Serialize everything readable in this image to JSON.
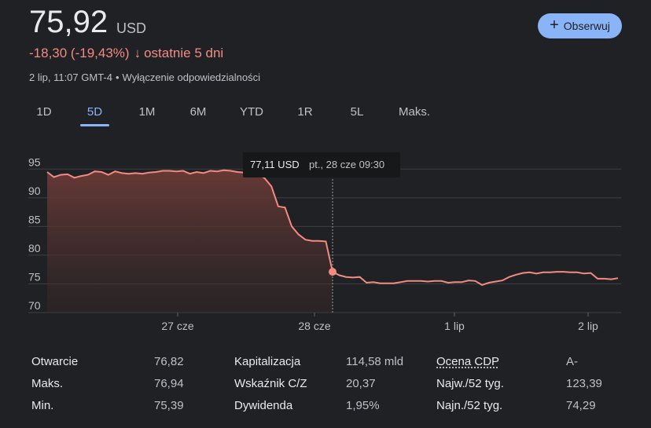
{
  "quote": {
    "price": "75,92",
    "currency": "USD",
    "change": "-18,30 (-19,43%)",
    "change_arrow": "↓",
    "change_period": "ostatnie 5 dni",
    "timestamp": "2 lip, 11:07 GMT-4",
    "separator": "•",
    "disclaimer": "Wyłączenie odpowiedzialności",
    "follow_label": "Obserwuj",
    "follow_icon": "plus-icon",
    "negative_color": "#f28b82",
    "accent_color": "#8ab4f8"
  },
  "tabs": [
    {
      "label": "1D",
      "active": false
    },
    {
      "label": "5D",
      "active": true
    },
    {
      "label": "1M",
      "active": false
    },
    {
      "label": "6M",
      "active": false
    },
    {
      "label": "YTD",
      "active": false
    },
    {
      "label": "1R",
      "active": false
    },
    {
      "label": "5L",
      "active": false
    },
    {
      "label": "Maks.",
      "active": false
    }
  ],
  "chart_data": {
    "type": "area",
    "y_ticks": [
      "95",
      "90",
      "85",
      "80",
      "75",
      "70"
    ],
    "ylim": [
      70,
      96
    ],
    "x_ticks": [
      "27 cze",
      "28 cze",
      "1 lip",
      "2 lip"
    ],
    "grid": true,
    "tooltip": {
      "value": "77,11 USD",
      "time": "pt., 28 cze 09:30"
    },
    "series": [
      {
        "values": [
          94.5,
          93.6,
          94.0,
          94.1,
          93.5,
          93.8,
          94.0,
          94.6,
          94.5,
          94.0,
          94.6,
          94.3,
          94.2,
          94.3,
          94.2,
          94.4,
          94.5,
          94.7,
          94.7,
          94.6,
          94.7,
          94.2,
          94.5,
          94.3,
          94.7,
          94.6,
          94.8,
          94.7,
          94.5,
          94.4,
          94.1,
          94.2,
          93.4,
          92.0,
          88.5,
          88.3,
          85.0,
          83.6,
          82.7,
          82.5,
          82.5,
          82.4,
          77.1,
          76.5,
          76.2,
          76.1,
          76.2,
          75.2,
          75.3,
          75.1,
          75.1,
          75.1,
          75.3,
          75.5,
          75.5,
          75.5,
          75.4,
          75.5,
          75.5,
          75.2,
          75.3,
          75.3,
          75.6,
          75.5,
          74.8,
          75.2,
          75.4,
          75.6,
          76.2,
          76.6,
          76.9,
          77.0,
          76.8,
          77.0,
          77.0,
          77.1,
          77.1,
          77.0,
          77.0,
          76.8,
          76.9,
          75.9,
          75.9,
          75.8,
          76.0
        ]
      }
    ],
    "line_color": "#f28b82"
  },
  "stats": [
    {
      "label": "Otwarcie",
      "value": "76,82"
    },
    {
      "label": "Maks.",
      "value": "76,94"
    },
    {
      "label": "Min.",
      "value": "75,39"
    },
    {
      "label": "Kapitalizacja",
      "value": "114,58 mld"
    },
    {
      "label": "Wskaźnik C/Z",
      "value": "20,37"
    },
    {
      "label": "Dywidenda",
      "value": "1,95%"
    },
    {
      "label": "Ocena CDP",
      "value": "A-"
    },
    {
      "label": "Najw./52 tyg.",
      "value": "123,39"
    },
    {
      "label": "Najn./52 tyg.",
      "value": "74,29"
    }
  ]
}
